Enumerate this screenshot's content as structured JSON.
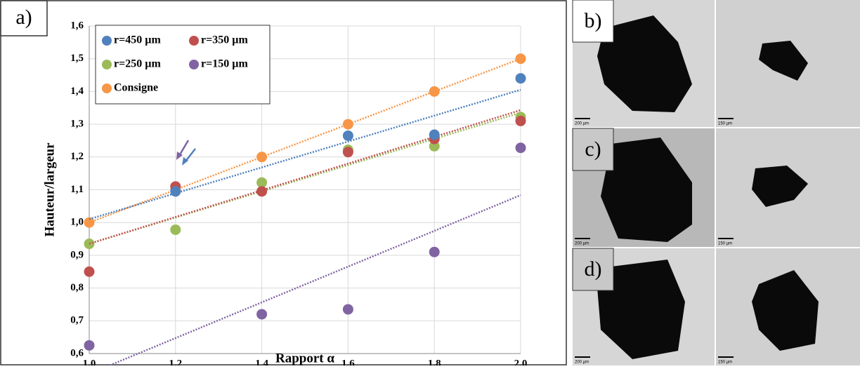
{
  "chart_data": {
    "type": "scatter",
    "panel_label": "a)",
    "x_label": "Rapport α",
    "y_label": "Hauteur/largeur",
    "x": [
      1.0,
      1.2,
      1.4,
      1.6,
      1.8,
      2.0
    ],
    "series": [
      {
        "name": "r=450 µm",
        "color": "#4f81bd",
        "values": [
          null,
          1.095,
          null,
          1.265,
          1.268,
          1.44
        ]
      },
      {
        "name": "r=350 µm",
        "color": "#c0504d",
        "values": [
          0.85,
          1.11,
          1.095,
          1.215,
          1.255,
          1.31
        ]
      },
      {
        "name": "r=250 µm",
        "color": "#9bbb59",
        "values": [
          0.935,
          0.978,
          1.122,
          1.222,
          1.233,
          1.322
        ]
      },
      {
        "name": "r=150 µm",
        "color": "#8064a2",
        "values": [
          0.625,
          null,
          0.72,
          0.735,
          0.91,
          1.228
        ]
      },
      {
        "name": "Consigne",
        "color": "#f79646",
        "values": [
          1.0,
          1.1,
          1.2,
          1.3,
          1.4,
          1.5
        ]
      }
    ],
    "trendline": true,
    "xlim": [
      1.0,
      2.0
    ],
    "xticks": [
      {
        "value": 1.0,
        "label": "1,0"
      },
      {
        "value": 1.2,
        "label": "1,2"
      },
      {
        "value": 1.4,
        "label": "1,4"
      },
      {
        "value": 1.6,
        "label": "1,6"
      },
      {
        "value": 1.8,
        "label": "1,8"
      },
      {
        "value": 2.0,
        "label": "2,0"
      }
    ],
    "ylim": [
      0.6,
      1.6
    ],
    "yticks": [
      {
        "value": 0.6,
        "label": "0,6"
      },
      {
        "value": 0.7,
        "label": "0,7"
      },
      {
        "value": 0.8,
        "label": "0,8"
      },
      {
        "value": 0.9,
        "label": "0,9"
      },
      {
        "value": 1.0,
        "label": "1,0"
      },
      {
        "value": 1.1,
        "label": "1,1"
      },
      {
        "value": 1.2,
        "label": "1,2"
      },
      {
        "value": 1.3,
        "label": "1,3"
      },
      {
        "value": 1.4,
        "label": "1,4"
      },
      {
        "value": 1.5,
        "label": "1,5"
      },
      {
        "value": 1.6,
        "label": "1,6"
      }
    ],
    "grid": true,
    "legend": "upper-left"
  },
  "micrographs": [
    {
      "label": "b)",
      "scales": [
        "200 µm",
        "150 µm"
      ]
    },
    {
      "label": "c)",
      "scales": [
        "200 µm",
        "150 µm"
      ]
    },
    {
      "label": "d)",
      "scales": [
        "200 µm",
        "150 µm"
      ]
    }
  ]
}
